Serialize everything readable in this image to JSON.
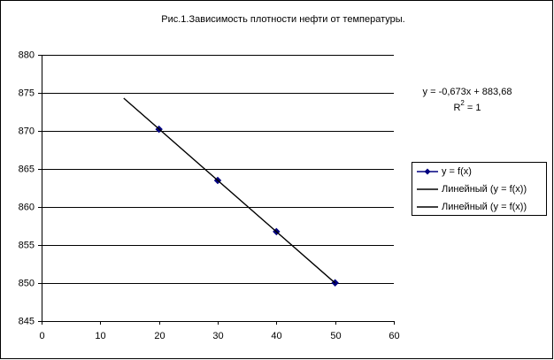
{
  "chart_data": {
    "type": "scatter",
    "title": "Рис.1.Зависимость плотности нефти от температуры.",
    "series": [
      {
        "name": "y = f(x)",
        "color": "#000080",
        "x": [
          20,
          30,
          40,
          50
        ],
        "values": [
          870.22,
          863.49,
          856.76,
          850.03
        ],
        "marker": "diamond"
      },
      {
        "name": "Линейный (y = f(x))",
        "color": "#000000",
        "x": [
          14,
          50
        ],
        "values": [
          874.3,
          850.0
        ],
        "marker": "none"
      },
      {
        "name": "Линейный (y = f(x))",
        "color": "#000000",
        "x": [
          14,
          50
        ],
        "values": [
          874.3,
          850.0
        ],
        "marker": "none"
      }
    ],
    "annotations": [
      {
        "text": "y = -0,673x + 883,68"
      },
      {
        "text": "R",
        "sup": "2",
        "after": " = 1"
      }
    ],
    "xlim": [
      0,
      60
    ],
    "xticks": [
      0,
      10,
      20,
      30,
      40,
      50,
      60
    ],
    "ylim": [
      845,
      880
    ],
    "yticks": [
      845,
      850,
      855,
      860,
      865,
      870,
      875,
      880
    ],
    "grid": true,
    "legend": "right"
  }
}
